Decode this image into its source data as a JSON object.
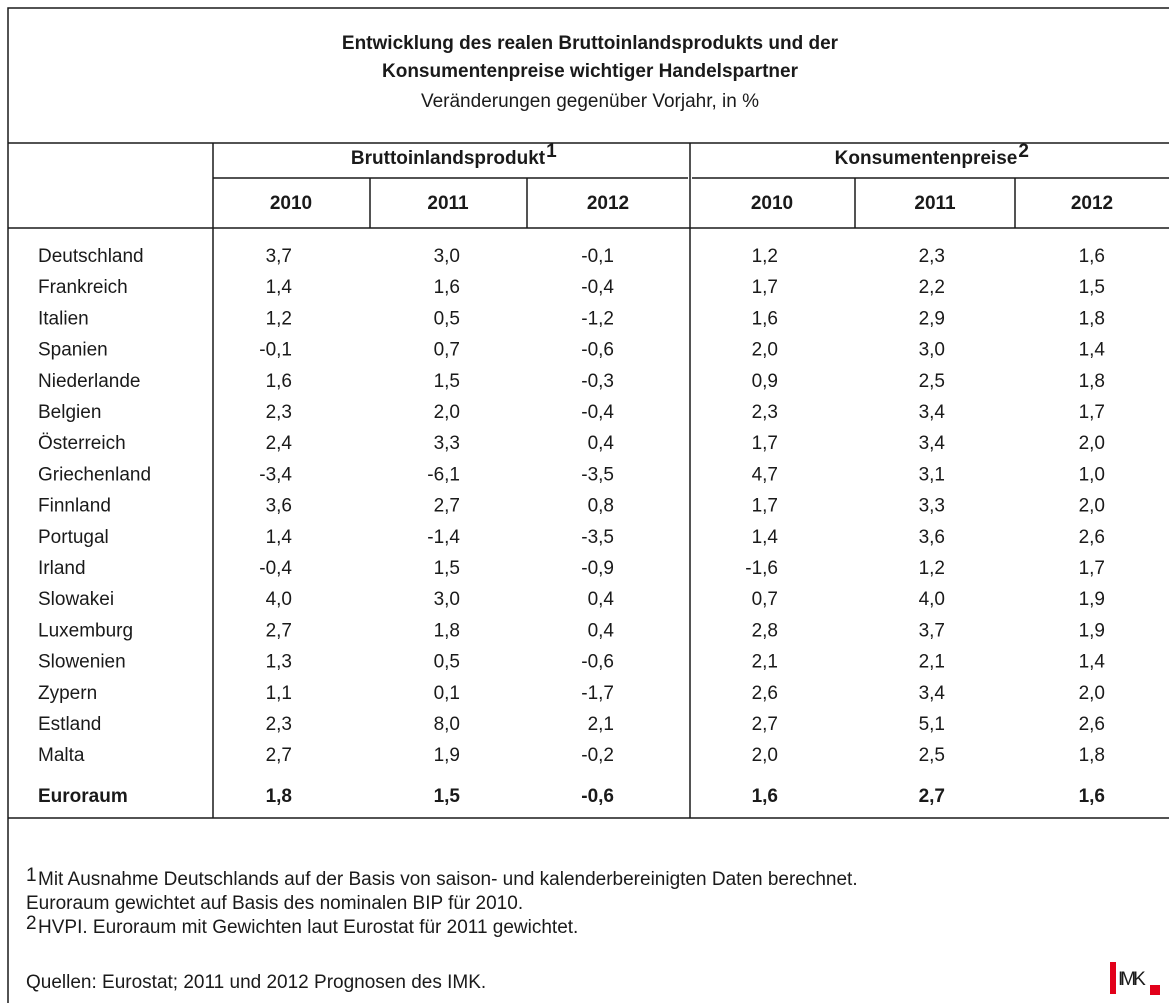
{
  "title": [
    "Entwicklung des realen Bruttoinlandsprodukts und der",
    "Konsumentenpreise wichtiger Handelspartner"
  ],
  "subtitle": "Veränderungen gegenüber Vorjahr, in %",
  "table": {
    "groups": [
      {
        "label": "Bruttoinlandsprodukt",
        "note": "1"
      },
      {
        "label": "Konsumentenpreise",
        "note": "2"
      }
    ],
    "years": [
      "2010",
      "2011",
      "2012",
      "2010",
      "2011",
      "2012"
    ],
    "rows": [
      [
        "Deutschland",
        "3,7",
        "3,0",
        "-0,1",
        "1,2",
        "2,3",
        "1,6"
      ],
      [
        "Frankreich",
        "1,4",
        "1,6",
        "-0,4",
        "1,7",
        "2,2",
        "1,5"
      ],
      [
        "Italien",
        "1,2",
        "0,5",
        "-1,2",
        "1,6",
        "2,9",
        "1,8"
      ],
      [
        "Spanien",
        "-0,1",
        "0,7",
        "-0,6",
        "2,0",
        "3,0",
        "1,4"
      ],
      [
        "Niederlande",
        "1,6",
        "1,5",
        "-0,3",
        "0,9",
        "2,5",
        "1,8"
      ],
      [
        "Belgien",
        "2,3",
        "2,0",
        "-0,4",
        "2,3",
        "3,4",
        "1,7"
      ],
      [
        "Österreich",
        "2,4",
        "3,3",
        "0,4",
        "1,7",
        "3,4",
        "2,0"
      ],
      [
        "Griechenland",
        "-3,4",
        "-6,1",
        "-3,5",
        "4,7",
        "3,1",
        "1,0"
      ],
      [
        "Finnland",
        "3,6",
        "2,7",
        "0,8",
        "1,7",
        "3,3",
        "2,0"
      ],
      [
        "Portugal",
        "1,4",
        "-1,4",
        "-3,5",
        "1,4",
        "3,6",
        "2,6"
      ],
      [
        "Irland",
        "-0,4",
        "1,5",
        "-0,9",
        "-1,6",
        "1,2",
        "1,7"
      ],
      [
        "Slowakei",
        "4,0",
        "3,0",
        "0,4",
        "0,7",
        "4,0",
        "1,9"
      ],
      [
        "Luxemburg",
        "2,7",
        "1,8",
        "0,4",
        "2,8",
        "3,7",
        "1,9"
      ],
      [
        "Slowenien",
        "1,3",
        "0,5",
        "-0,6",
        "2,1",
        "2,1",
        "1,4"
      ],
      [
        "Zypern",
        "1,1",
        "0,1",
        "-1,7",
        "2,6",
        "3,4",
        "2,0"
      ],
      [
        "Estland",
        "2,3",
        "8,0",
        "2,1",
        "2,7",
        "5,1",
        "2,6"
      ],
      [
        "Malta",
        "2,7",
        "1,9",
        "-0,2",
        "2,0",
        "2,5",
        "1,8"
      ]
    ],
    "total": [
      "Euroraum",
      "1,8",
      "1,5",
      "-0,6",
      "1,6",
      "2,7",
      "1,6"
    ]
  },
  "footnotes": [
    {
      "mark": "1",
      "text": "Mit Ausnahme Deutschlands auf der Basis von saison- und kalenderbereinigten Daten berechnet."
    },
    {
      "text": "Euroraum gewichtet auf Basis des nominalen BIP für 2010."
    },
    {
      "mark": "2",
      "text": "HVPI. Euroraum mit Gewichten laut Eurostat für 2011 gewichtet."
    }
  ],
  "source": "Quellen: Eurostat; 2011 und 2012 Prognosen des IMK.",
  "logo": "IMK"
}
